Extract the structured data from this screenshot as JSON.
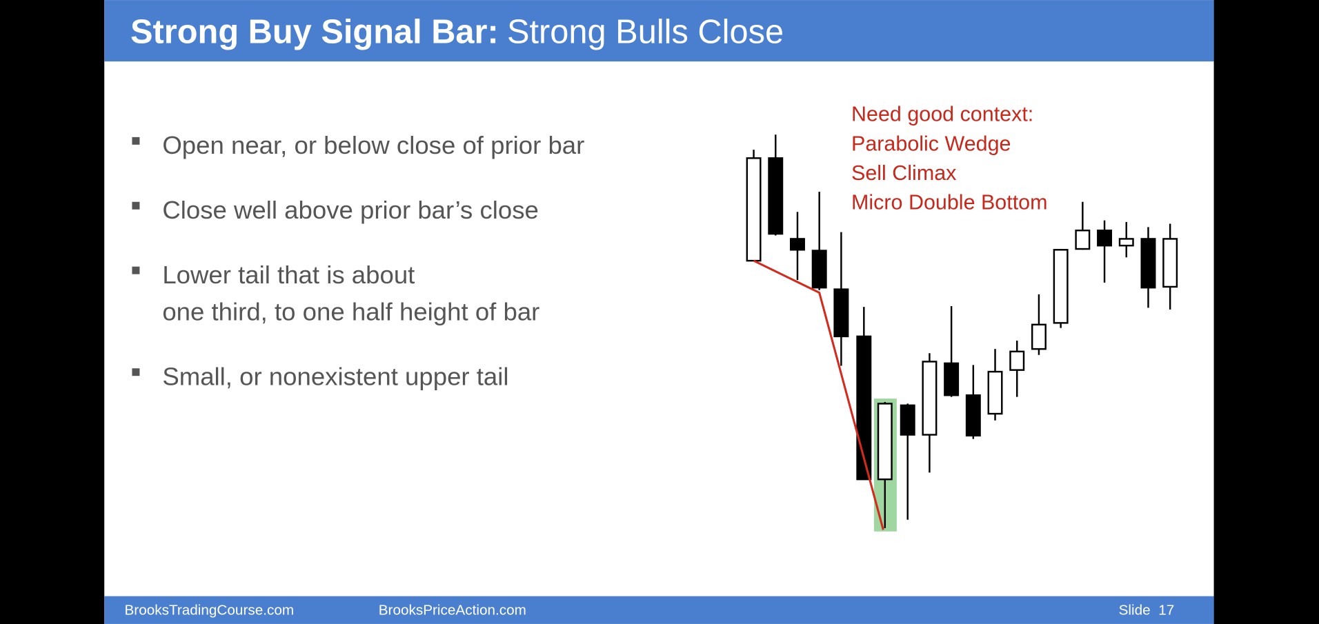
{
  "header": {
    "title_bold": "Strong Buy Signal Bar:",
    "title_rest": "Strong Bulls Close"
  },
  "bullets": [
    {
      "lines": [
        "Open near, or below close of prior bar"
      ]
    },
    {
      "lines": [
        "Close well above prior bar’s close"
      ]
    },
    {
      "lines": [
        "Lower tail that is about",
        "one third, to one half height of bar"
      ]
    },
    {
      "lines": [
        "Small, or nonexistent upper tail"
      ]
    }
  ],
  "annotation": {
    "lines": [
      "Need good context:",
      "Parabolic Wedge",
      "Sell Climax",
      "Micro Double Bottom"
    ]
  },
  "footer": {
    "left": "BrooksTradingCourse.com",
    "middle": "BrooksPriceAction.com",
    "slide": "Slide  17"
  }
}
